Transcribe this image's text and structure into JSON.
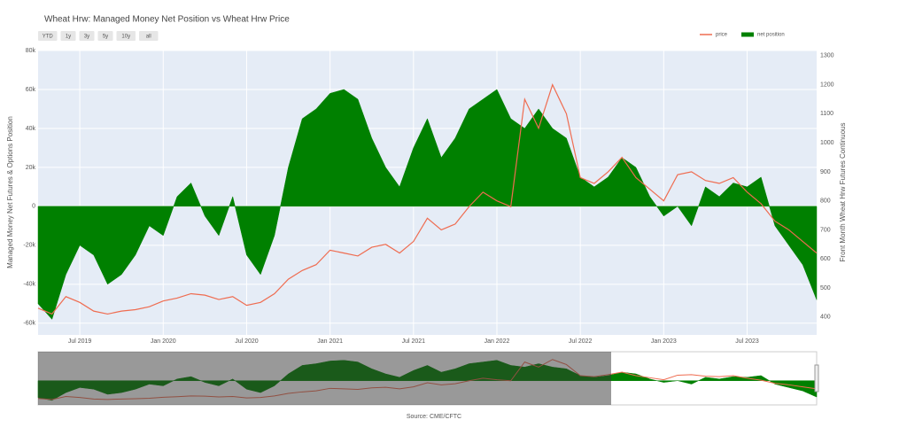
{
  "chart_data": {
    "type": "area-line",
    "title": "Wheat Hrw: Managed Money Net Position vs Wheat Hrw Price",
    "buttons": [
      "YTD",
      "1y",
      "3y",
      "5y",
      "10y",
      "all"
    ],
    "ylabel": "Managed Money Net Futures & Options Position",
    "y2label": "Front Month Wheat Hrw Futures Continuous",
    "source": "Source: CME/CFTC",
    "x": [
      "2019-04",
      "2019-05",
      "2019-06",
      "2019-07",
      "2019-08",
      "2019-09",
      "2019-10",
      "2019-11",
      "2019-12",
      "2020-01",
      "2020-02",
      "2020-03",
      "2020-04",
      "2020-05",
      "2020-06",
      "2020-07",
      "2020-08",
      "2020-09",
      "2020-10",
      "2020-11",
      "2020-12",
      "2021-01",
      "2021-02",
      "2021-03",
      "2021-04",
      "2021-05",
      "2021-06",
      "2021-07",
      "2021-08",
      "2021-09",
      "2021-10",
      "2021-11",
      "2021-12",
      "2022-01",
      "2022-02",
      "2022-03",
      "2022-04",
      "2022-05",
      "2022-06",
      "2022-07",
      "2022-08",
      "2022-09",
      "2022-10",
      "2022-11",
      "2022-12",
      "2023-01",
      "2023-02",
      "2023-03",
      "2023-04",
      "2023-05",
      "2023-06",
      "2023-07",
      "2023-08",
      "2023-09",
      "2023-10",
      "2023-11",
      "2023-12"
    ],
    "xlim": [
      "2019-04",
      "2023-12"
    ],
    "xticks": [
      {
        "value": "2019-07",
        "label": "Jul 2019"
      },
      {
        "value": "2020-01",
        "label": "Jan 2020"
      },
      {
        "value": "2020-07",
        "label": "Jul 2020"
      },
      {
        "value": "2021-01",
        "label": "Jan 2021"
      },
      {
        "value": "2021-07",
        "label": "Jul 2021"
      },
      {
        "value": "2022-01",
        "label": "Jan 2022"
      },
      {
        "value": "2022-07",
        "label": "Jul 2022"
      },
      {
        "value": "2023-01",
        "label": "Jan 2023"
      },
      {
        "value": "2023-07",
        "label": "Jul 2023"
      }
    ],
    "ylim": [
      -66000,
      80000
    ],
    "yticks": [
      {
        "value": -60000,
        "label": "-60k"
      },
      {
        "value": -40000,
        "label": "-40k"
      },
      {
        "value": -20000,
        "label": "-20k"
      },
      0,
      {
        "value": 20000,
        "label": "20k"
      },
      {
        "value": 40000,
        "label": "40k"
      },
      {
        "value": 60000,
        "label": "60k"
      },
      {
        "value": 80000,
        "label": "80k"
      }
    ],
    "y2lim": [
      338,
      1318
    ],
    "y2ticks": [
      400,
      500,
      600,
      700,
      800,
      900,
      1000,
      1100,
      1200,
      1300
    ],
    "grid": true,
    "legend": "top-right",
    "series": [
      {
        "name": "price",
        "color": "#ef6c50",
        "kind": "line",
        "axis": "y2",
        "values": [
          430,
          410,
          470,
          450,
          420,
          410,
          420,
          425,
          435,
          455,
          465,
          480,
          475,
          460,
          470,
          440,
          450,
          480,
          530,
          560,
          580,
          630,
          620,
          610,
          640,
          650,
          620,
          660,
          740,
          700,
          720,
          780,
          830,
          800,
          780,
          1150,
          1050,
          1200,
          1100,
          880,
          860,
          900,
          950,
          880,
          840,
          800,
          890,
          900,
          870,
          860,
          880,
          830,
          790,
          730,
          700,
          660,
          620
        ]
      },
      {
        "name": "net position",
        "color": "#008000",
        "kind": "area",
        "axis": "y",
        "values": [
          -50000,
          -58000,
          -35000,
          -20000,
          -25000,
          -40000,
          -35000,
          -25000,
          -10000,
          -15000,
          5000,
          12000,
          -5000,
          -15000,
          5000,
          -25000,
          -35000,
          -15000,
          20000,
          45000,
          50000,
          58000,
          60000,
          55000,
          35000,
          20000,
          10000,
          30000,
          45000,
          25000,
          35000,
          50000,
          55000,
          60000,
          45000,
          40000,
          50000,
          40000,
          35000,
          15000,
          10000,
          15000,
          25000,
          20000,
          5000,
          -5000,
          0,
          -10000,
          10000,
          5000,
          12000,
          10000,
          15000,
          -10000,
          -20000,
          -30000,
          -48000
        ]
      }
    ]
  }
}
